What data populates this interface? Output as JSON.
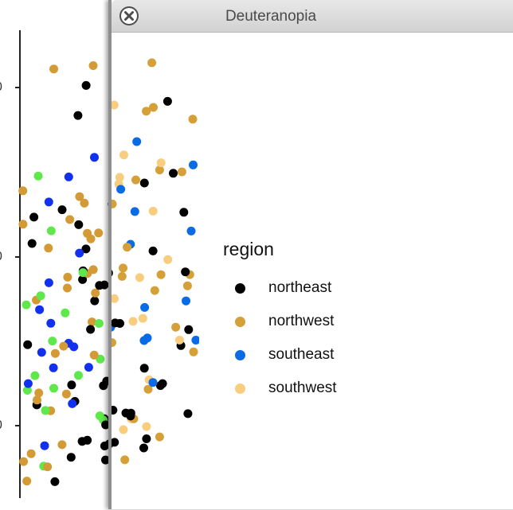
{
  "window": {
    "title": "Deuteranopia",
    "close_icon": "close-icon"
  },
  "background_plot": {
    "tick_labels": [
      "0",
      "0",
      "0"
    ]
  },
  "legend": {
    "title": "region",
    "items": [
      {
        "label": "northeast",
        "color": "#000000"
      },
      {
        "label": "northwest",
        "color": "#d4a037"
      },
      {
        "label": "southeast",
        "color": "#0a6be6"
      },
      {
        "label": "southwest",
        "color": "#f9cd7e"
      }
    ]
  },
  "colors": {
    "background_northeast": "#000000",
    "background_northwest": "#d49a35",
    "background_southeast": "#1230f0",
    "background_southwest": "#5ee84a"
  }
}
